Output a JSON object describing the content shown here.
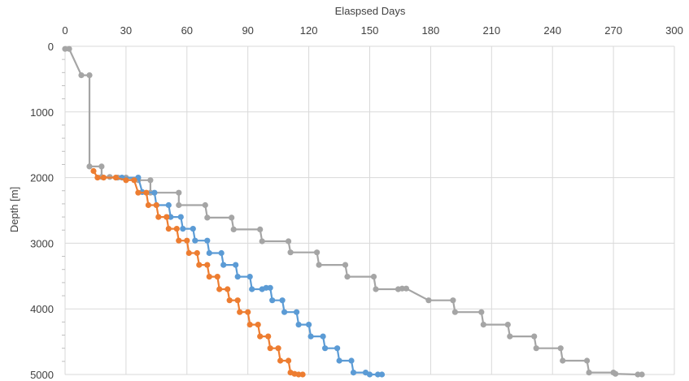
{
  "chart_data": {
    "type": "line",
    "title": "",
    "xlabel": "Elaspsed Days",
    "ylabel": "Depth [m]",
    "xlim": [
      0,
      300
    ],
    "ylim": [
      5000,
      0
    ],
    "x_axis_position": "top",
    "y_axis_inverted": true,
    "grid": true,
    "legend": "none",
    "xticks": [
      0,
      30,
      60,
      90,
      120,
      150,
      180,
      210,
      240,
      270,
      300
    ],
    "yticks": [
      0,
      1000,
      2000,
      3000,
      4000,
      5000
    ],
    "xtick_labels": [
      "0",
      "30",
      "60",
      "90",
      "120",
      "150",
      "180",
      "210",
      "240",
      "270",
      "300"
    ],
    "ytick_labels": [
      "0",
      "1000",
      "2000",
      "3000",
      "4000",
      "5000"
    ],
    "series": [
      {
        "color": "#A5A5A5",
        "points": [
          [
            0,
            40
          ],
          [
            2,
            40
          ],
          [
            8,
            440
          ],
          [
            12,
            440
          ],
          [
            12,
            1830
          ],
          [
            18,
            1830
          ],
          [
            18,
            1990
          ],
          [
            22,
            1990
          ],
          [
            26,
            2000
          ],
          [
            30,
            2000
          ],
          [
            36,
            2040
          ],
          [
            42,
            2040
          ],
          [
            42,
            2230
          ],
          [
            56,
            2230
          ],
          [
            56,
            2420
          ],
          [
            69,
            2420
          ],
          [
            70,
            2610
          ],
          [
            82,
            2610
          ],
          [
            83,
            2790
          ],
          [
            96,
            2790
          ],
          [
            97,
            2970
          ],
          [
            110,
            2970
          ],
          [
            111,
            3140
          ],
          [
            124,
            3140
          ],
          [
            125,
            3330
          ],
          [
            138,
            3330
          ],
          [
            139,
            3510
          ],
          [
            152,
            3510
          ],
          [
            153,
            3700
          ],
          [
            164,
            3700
          ],
          [
            166,
            3690
          ],
          [
            168,
            3690
          ],
          [
            179,
            3870
          ],
          [
            191,
            3870
          ],
          [
            192,
            4050
          ],
          [
            205,
            4050
          ],
          [
            206,
            4240
          ],
          [
            218,
            4240
          ],
          [
            219,
            4420
          ],
          [
            231,
            4420
          ],
          [
            232,
            4600
          ],
          [
            244,
            4600
          ],
          [
            245,
            4790
          ],
          [
            257,
            4790
          ],
          [
            258,
            4970
          ],
          [
            270,
            4970
          ],
          [
            271,
            4990
          ],
          [
            282,
            5000
          ],
          [
            284,
            5000
          ]
        ]
      },
      {
        "color": "#5B9BD5",
        "points": [
          [
            28,
            2000
          ],
          [
            36,
            2000
          ],
          [
            38,
            2220
          ],
          [
            44,
            2230
          ],
          [
            45,
            2420
          ],
          [
            51,
            2420
          ],
          [
            52,
            2600
          ],
          [
            57,
            2600
          ],
          [
            58,
            2780
          ],
          [
            63,
            2780
          ],
          [
            64,
            2960
          ],
          [
            70,
            2960
          ],
          [
            71,
            3150
          ],
          [
            77,
            3150
          ],
          [
            78,
            3330
          ],
          [
            84,
            3330
          ],
          [
            85,
            3510
          ],
          [
            91,
            3510
          ],
          [
            92,
            3700
          ],
          [
            97,
            3700
          ],
          [
            99,
            3680
          ],
          [
            101,
            3680
          ],
          [
            102,
            3870
          ],
          [
            107,
            3870
          ],
          [
            108,
            4050
          ],
          [
            114,
            4050
          ],
          [
            115,
            4240
          ],
          [
            120,
            4240
          ],
          [
            121,
            4420
          ],
          [
            127,
            4420
          ],
          [
            128,
            4600
          ],
          [
            134,
            4600
          ],
          [
            135,
            4790
          ],
          [
            141,
            4790
          ],
          [
            142,
            4970
          ],
          [
            148,
            4970
          ],
          [
            150,
            5000
          ],
          [
            154,
            5000
          ],
          [
            156,
            5000
          ]
        ]
      },
      {
        "color": "#ED7D31",
        "points": [
          [
            14,
            1900
          ],
          [
            16,
            2000
          ],
          [
            19,
            2000
          ],
          [
            25,
            2000
          ],
          [
            30,
            2040
          ],
          [
            34,
            2040
          ],
          [
            36,
            2230
          ],
          [
            40,
            2230
          ],
          [
            41,
            2420
          ],
          [
            45,
            2420
          ],
          [
            46,
            2600
          ],
          [
            50,
            2600
          ],
          [
            51,
            2780
          ],
          [
            55,
            2780
          ],
          [
            56,
            2960
          ],
          [
            60,
            2960
          ],
          [
            61,
            3150
          ],
          [
            65,
            3150
          ],
          [
            66,
            3330
          ],
          [
            70,
            3330
          ],
          [
            71,
            3510
          ],
          [
            75,
            3510
          ],
          [
            76,
            3700
          ],
          [
            80,
            3700
          ],
          [
            81,
            3870
          ],
          [
            85,
            3870
          ],
          [
            86,
            4050
          ],
          [
            90,
            4050
          ],
          [
            91,
            4240
          ],
          [
            95,
            4240
          ],
          [
            96,
            4420
          ],
          [
            100,
            4420
          ],
          [
            101,
            4600
          ],
          [
            105,
            4600
          ],
          [
            106,
            4790
          ],
          [
            110,
            4790
          ],
          [
            111,
            4970
          ],
          [
            113,
            4990
          ],
          [
            115,
            5000
          ],
          [
            117,
            5000
          ]
        ]
      }
    ]
  }
}
